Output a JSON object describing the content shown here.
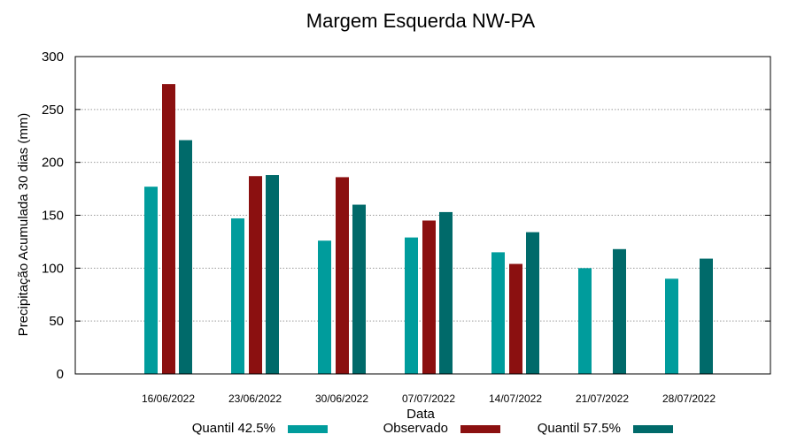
{
  "chart_data": {
    "type": "bar",
    "title": "Margem Esquerda NW-PA",
    "xlabel": "Data",
    "ylabel": "Precipitação Acumulada 30 dias (mm)",
    "ylim": [
      0,
      300
    ],
    "yticks": [
      0,
      50,
      100,
      150,
      200,
      250,
      300
    ],
    "grid": true,
    "legend_position": "bottom",
    "categories": [
      "16/06/2022",
      "23/06/2022",
      "30/06/2022",
      "07/07/2022",
      "14/07/2022",
      "21/07/2022",
      "28/07/2022"
    ],
    "series": [
      {
        "name": "Quantil 42.5%",
        "color": "#009c9c",
        "values": [
          177,
          147,
          126,
          129,
          115,
          100,
          90
        ]
      },
      {
        "name": "Observado",
        "color": "#8b1010",
        "values": [
          274,
          187,
          186,
          145,
          104,
          null,
          null
        ]
      },
      {
        "name": "Quantil 57.5%",
        "color": "#006a6a",
        "values": [
          221,
          188,
          160,
          153,
          134,
          118,
          109
        ]
      }
    ]
  }
}
